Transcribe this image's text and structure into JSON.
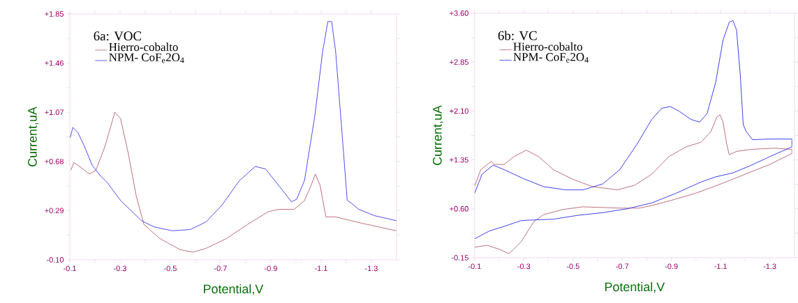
{
  "chart_data": [
    {
      "type": "line",
      "legend_title": "6a: VOC",
      "xlabel": "Potential,V",
      "ylabel": "Current,uA",
      "legend": "top left",
      "xlim": [
        -0.1,
        -1.4
      ],
      "xticks": [
        -0.1,
        -0.3,
        -0.5,
        -0.7,
        -0.9,
        -1.1,
        -1.3
      ],
      "ylim": [
        -0.1,
        1.85
      ],
      "yticks": [
        {
          "value": -0.1,
          "label": "-0.10"
        },
        {
          "value": 0.29,
          "label": "+0.29"
        },
        {
          "value": 0.68,
          "label": "+0.68"
        },
        {
          "value": 1.07,
          "label": "+1.07"
        },
        {
          "value": 1.46,
          "label": "+1.46"
        },
        {
          "value": 1.85,
          "label": "+1.85"
        }
      ],
      "series": [
        {
          "name": "Hierro-cobalto",
          "color": "#b5606e",
          "x": [
            -0.104,
            -0.116,
            -0.132,
            -0.178,
            -0.204,
            -0.24,
            -0.279,
            -0.302,
            -0.333,
            -0.364,
            -0.395,
            -0.457,
            -0.539,
            -0.59,
            -0.642,
            -0.725,
            -0.807,
            -0.889,
            -0.931,
            -0.993,
            -1.034,
            -1.06,
            -1.077,
            -1.096,
            -1.119,
            -1.158,
            -1.261,
            -1.4
          ],
          "values": [
            0.61,
            0.67,
            0.65,
            0.58,
            0.61,
            0.8,
            1.07,
            1.02,
            0.74,
            0.41,
            0.18,
            0.07,
            -0.02,
            -0.04,
            -0.01,
            0.07,
            0.18,
            0.28,
            0.3,
            0.3,
            0.37,
            0.49,
            0.58,
            0.49,
            0.24,
            0.24,
            0.19,
            0.13
          ]
        },
        {
          "name": "NPM- CoF$_{e}$2O$_{4}$",
          "color": "#3a3af0",
          "x": [
            -0.102,
            -0.112,
            -0.132,
            -0.158,
            -0.189,
            -0.22,
            -0.25,
            -0.302,
            -0.385,
            -0.436,
            -0.508,
            -0.58,
            -0.642,
            -0.704,
            -0.776,
            -0.838,
            -0.879,
            -0.931,
            -0.982,
            -1.003,
            -1.034,
            -1.075,
            -1.106,
            -1.127,
            -1.142,
            -1.158,
            -1.178,
            -1.204,
            -1.22,
            -1.25,
            -1.312,
            -1.4
          ],
          "values": [
            0.87,
            0.95,
            0.91,
            0.8,
            0.65,
            0.57,
            0.51,
            0.37,
            0.21,
            0.16,
            0.13,
            0.14,
            0.2,
            0.33,
            0.53,
            0.64,
            0.62,
            0.49,
            0.36,
            0.38,
            0.53,
            1.04,
            1.55,
            1.79,
            1.79,
            1.55,
            1.04,
            0.37,
            0.35,
            0.3,
            0.25,
            0.21
          ]
        }
      ]
    },
    {
      "type": "line",
      "legend_title": "6b: VC",
      "xlabel": "Potential,V",
      "ylabel": "Current,uA",
      "legend": "top left",
      "xlim": [
        -0.1,
        -1.4
      ],
      "xticks": [
        -0.1,
        -0.3,
        -0.5,
        -0.7,
        -0.9,
        -1.1,
        -1.3
      ],
      "ylim": [
        -0.15,
        3.6
      ],
      "yticks": [
        {
          "value": -0.15,
          "label": "-0.15"
        },
        {
          "value": 0.6,
          "label": "+0.60"
        },
        {
          "value": 1.35,
          "label": "+1.35"
        },
        {
          "value": 2.1,
          "label": "+2.10"
        },
        {
          "value": 2.85,
          "label": "+2.85"
        },
        {
          "value": 3.6,
          "label": "+3.60"
        }
      ],
      "series": [
        {
          "name": "Hierro-cobalto",
          "color": "#b5606e",
          "x": [
            -0.1,
            -0.125,
            -0.155,
            -0.168,
            -0.18,
            -0.22,
            -0.26,
            -0.31,
            -0.36,
            -0.42,
            -0.5,
            -0.58,
            -0.68,
            -0.75,
            -0.82,
            -0.89,
            -0.96,
            -1.02,
            -1.06,
            -1.085,
            -1.098,
            -1.11,
            -1.125,
            -1.135,
            -1.165,
            -1.22,
            -1.32,
            -1.39,
            -1.39,
            -1.3,
            -1.2,
            -1.1,
            -1.0,
            -0.9,
            -0.82,
            -0.77,
            -0.69,
            -0.62,
            -0.54,
            -0.46,
            -0.38,
            -0.34,
            -0.29,
            -0.24,
            -0.2,
            -0.15,
            -0.1
          ],
          "values": [
            0.95,
            1.2,
            1.29,
            1.33,
            1.28,
            1.28,
            1.4,
            1.5,
            1.4,
            1.2,
            1.05,
            0.94,
            0.89,
            0.96,
            1.13,
            1.4,
            1.55,
            1.62,
            1.78,
            2.01,
            2.04,
            1.93,
            1.59,
            1.43,
            1.48,
            1.51,
            1.53,
            1.51,
            1.45,
            1.28,
            1.13,
            0.98,
            0.84,
            0.73,
            0.65,
            0.61,
            0.61,
            0.62,
            0.63,
            0.59,
            0.51,
            0.4,
            0.1,
            -0.09,
            -0.02,
            0.04,
            0.01
          ]
        },
        {
          "name": "NPM- CoF$_{e}$2O$_{4}$",
          "color": "#2a2af2",
          "x": [
            -0.1,
            -0.13,
            -0.175,
            -0.22,
            -0.3,
            -0.38,
            -0.47,
            -0.54,
            -0.62,
            -0.69,
            -0.76,
            -0.82,
            -0.86,
            -0.895,
            -0.93,
            -0.98,
            -1.015,
            -1.045,
            -1.08,
            -1.11,
            -1.135,
            -1.15,
            -1.165,
            -1.18,
            -1.192,
            -1.205,
            -1.23,
            -1.3,
            -1.39,
            -1.39,
            -1.3,
            -1.22,
            -1.15,
            -1.08,
            -1.02,
            -0.92,
            -0.82,
            -0.72,
            -0.62,
            -0.52,
            -0.42,
            -0.35,
            -0.29,
            -0.22,
            -0.16,
            -0.1
          ],
          "values": [
            0.84,
            1.13,
            1.27,
            1.2,
            1.06,
            0.94,
            0.89,
            0.89,
            0.98,
            1.2,
            1.59,
            1.97,
            2.14,
            2.17,
            2.1,
            1.97,
            1.93,
            2.06,
            2.54,
            3.19,
            3.46,
            3.49,
            3.34,
            2.65,
            1.89,
            1.78,
            1.66,
            1.67,
            1.67,
            1.55,
            1.4,
            1.26,
            1.15,
            1.09,
            1.01,
            0.84,
            0.69,
            0.6,
            0.54,
            0.5,
            0.44,
            0.43,
            0.42,
            0.33,
            0.26,
            0.14
          ]
        }
      ]
    }
  ]
}
